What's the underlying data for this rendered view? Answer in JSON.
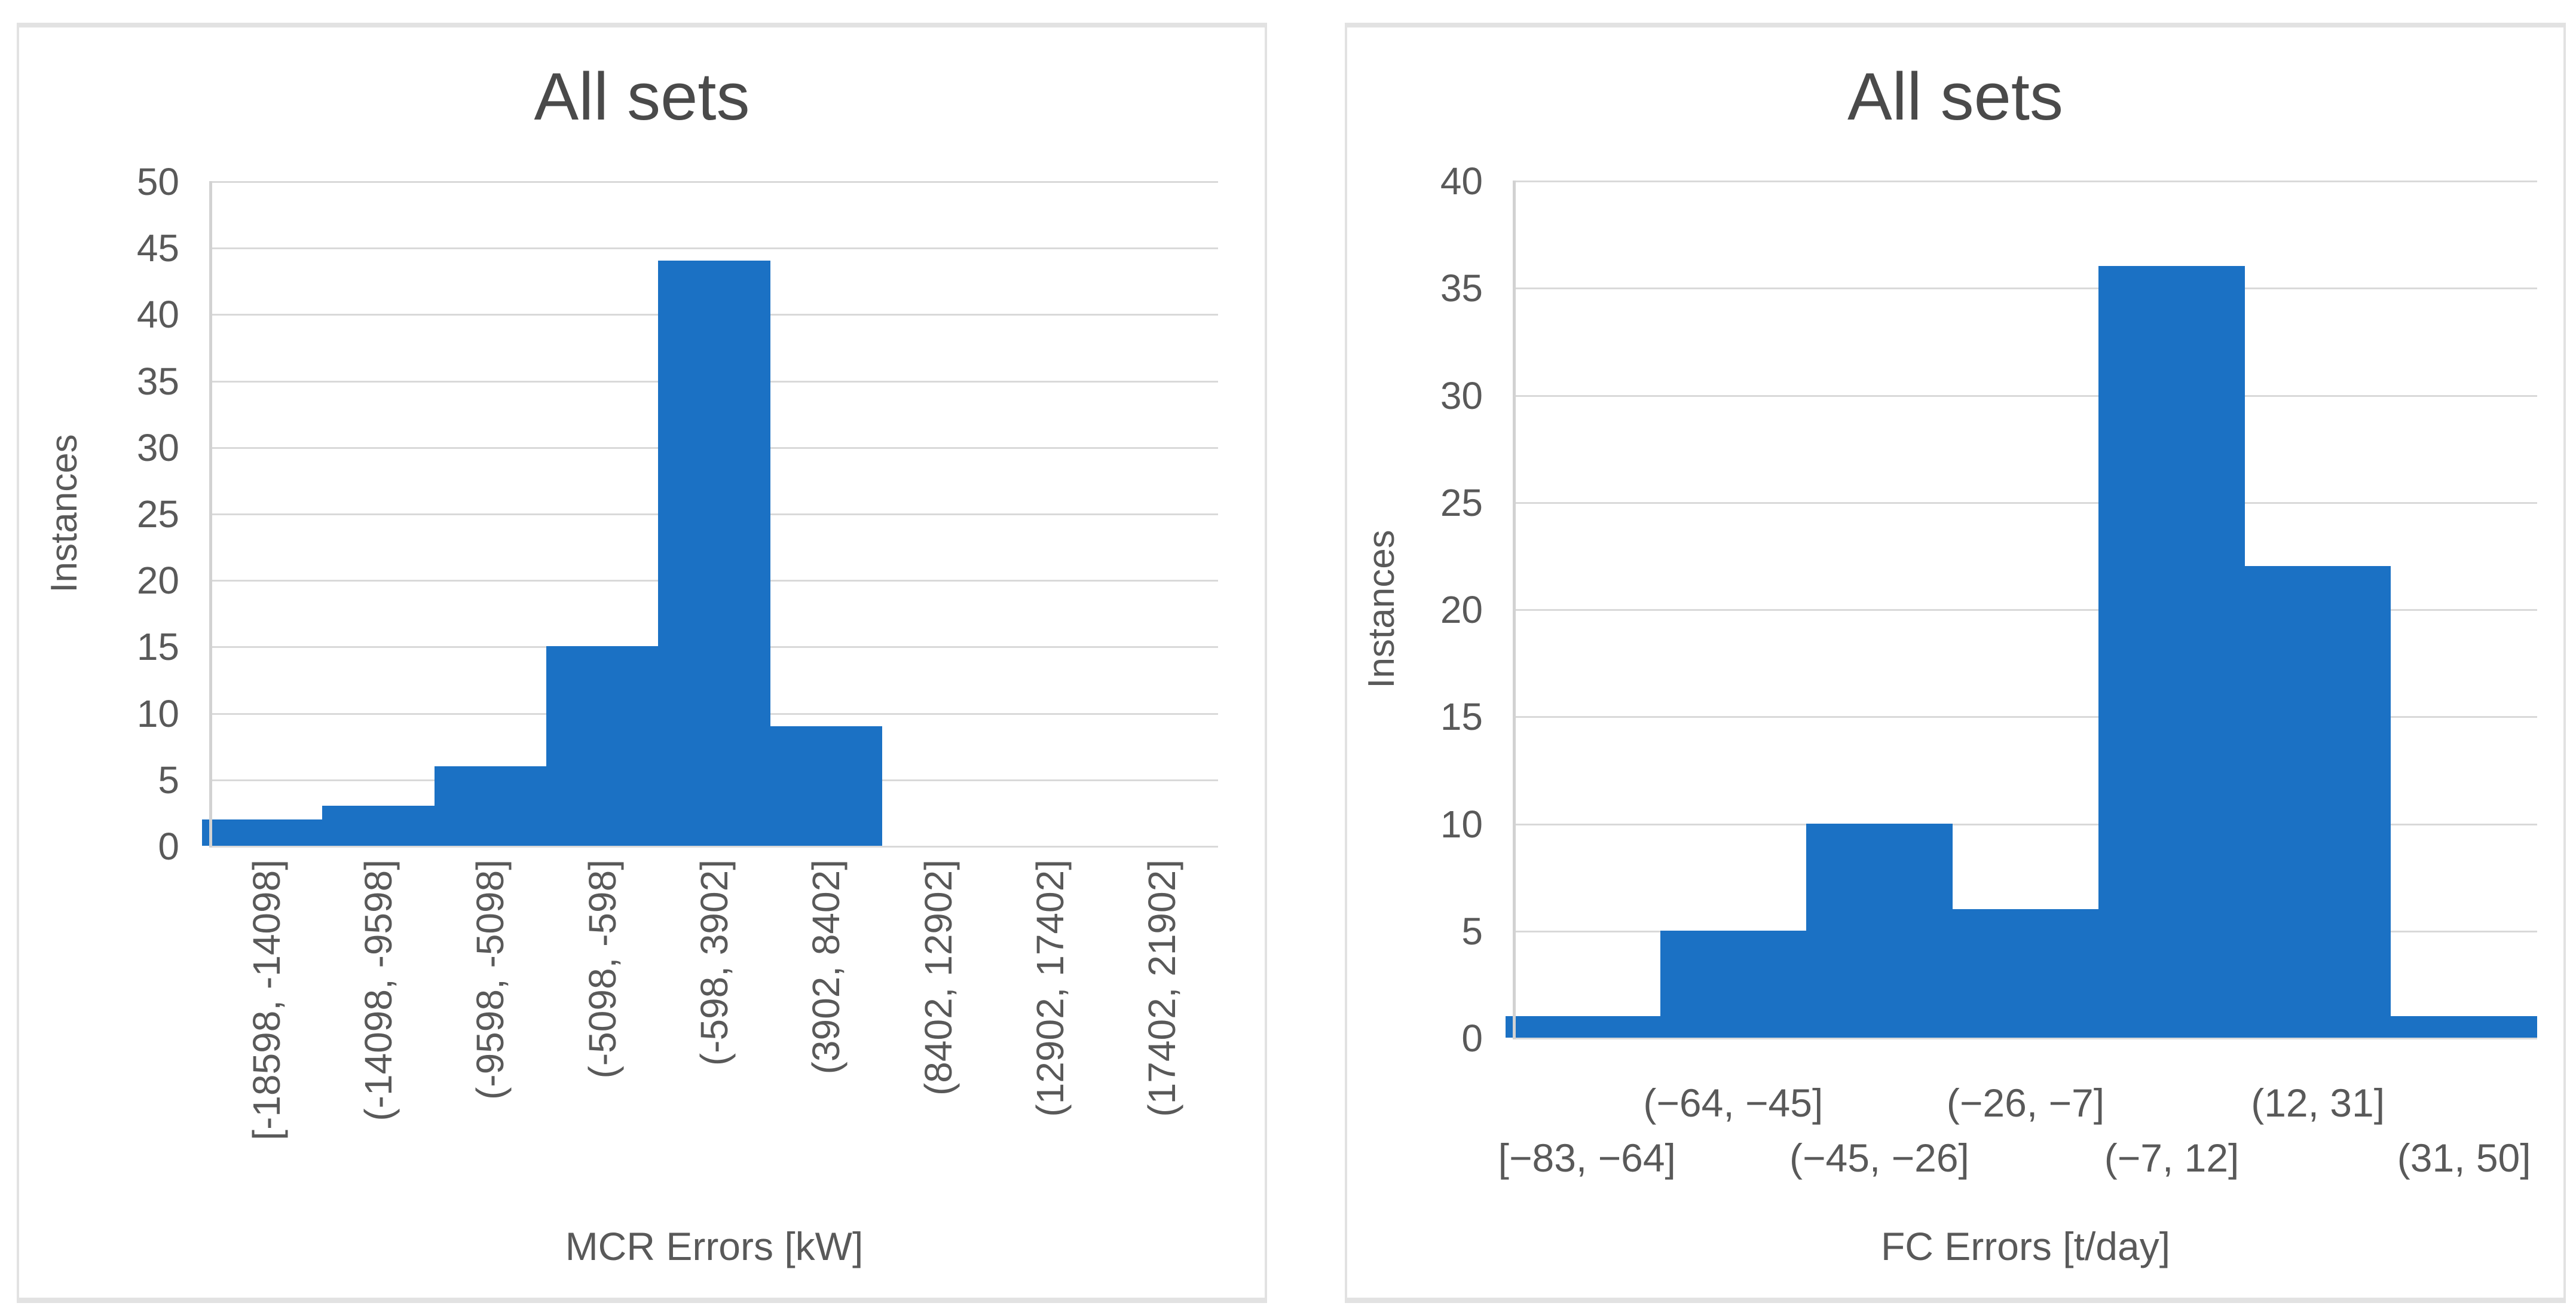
{
  "colors": {
    "bar": "#1B71C4",
    "gridline": "#D9D9D9",
    "axis_line": "#D2D2D2",
    "tick_text": "#595959",
    "title_text": "#4A4A4A",
    "panel_border": "#E2E2E2"
  },
  "chart_data": [
    {
      "type": "bar",
      "title": "All sets",
      "xlabel": "MCR Errors [kW]",
      "ylabel": "Instances",
      "ylim": [
        0,
        50
      ],
      "ytick_step": 5,
      "y_ticks": [
        0,
        5,
        10,
        15,
        20,
        25,
        30,
        35,
        40,
        45,
        50
      ],
      "grid": true,
      "legend": "none",
      "categories": [
        "[-18598, -14098]",
        "(-14098, -9598]",
        "(-9598, -5098]",
        "(-5098, -598]",
        "(-598, 3902]",
        "(3902, 8402]",
        "(8402, 12902]",
        "(12902, 17402]",
        "(17402, 21902]"
      ],
      "values": [
        2,
        3,
        6,
        15,
        44,
        9,
        0,
        0,
        0
      ]
    },
    {
      "type": "bar",
      "title": "All sets",
      "xlabel": "FC Errors [t/day]",
      "ylabel": "Instances",
      "ylim": [
        0,
        40
      ],
      "ytick_step": 5,
      "y_ticks": [
        0,
        5,
        10,
        15,
        20,
        25,
        30,
        35,
        40
      ],
      "grid": true,
      "legend": "none",
      "categories": [
        "[−83, −64]",
        "(−64, −45]",
        "(−45, −26]",
        "(−26, −7]",
        "(−7, 12]",
        "(12, 31]",
        "(31, 50]"
      ],
      "values": [
        1,
        5,
        10,
        6,
        36,
        22,
        1
      ]
    }
  ]
}
